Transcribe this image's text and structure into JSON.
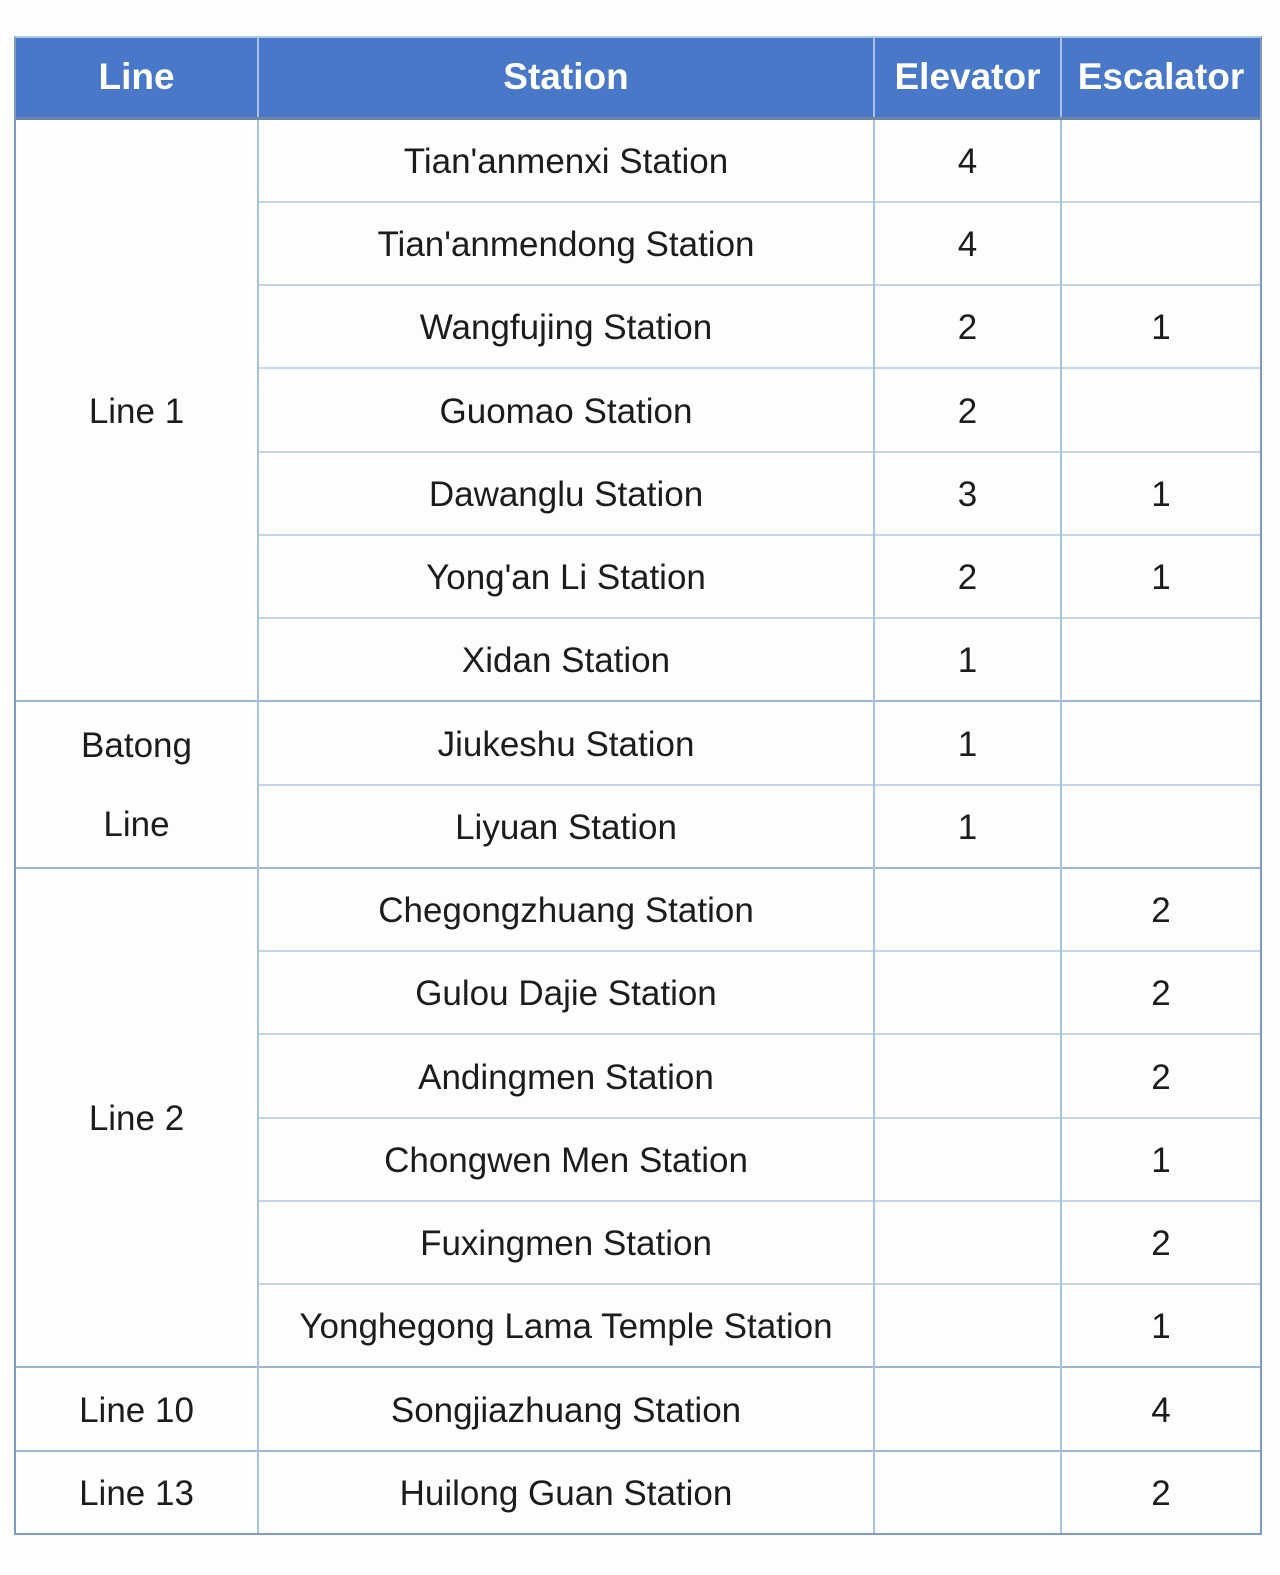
{
  "page": {
    "background_color": "#fdfdfd"
  },
  "style": {
    "header_bg": "#4a78c9",
    "header_text_color": "#ffffff",
    "body_text_color": "#1c1c1c",
    "outer_border_color": "#7e9dbe",
    "outer_top_border_color": "#abcbe1",
    "inner_vertical_border_color": "#a8c3dd",
    "inner_horizontal_border_color": "#c7d6e7",
    "group_boundary_border_color": "#9fb7d0",
    "header_divider_color": "#a9bfe4"
  },
  "chart_data": {
    "type": "table",
    "title": "",
    "columns": [
      "Line",
      "Station",
      "Elevator",
      "Escalator"
    ],
    "groups": [
      {
        "line": "Line 1",
        "stations": [
          {
            "name": "Tian'anmenxi Station",
            "elevator": "4",
            "escalator": ""
          },
          {
            "name": "Tian'anmendong Station",
            "elevator": "4",
            "escalator": ""
          },
          {
            "name": "Wangfujing Station",
            "elevator": "2",
            "escalator": "1"
          },
          {
            "name": "Guomao Station",
            "elevator": "2",
            "escalator": ""
          },
          {
            "name": "Dawanglu Station",
            "elevator": "3",
            "escalator": "1"
          },
          {
            "name": "Yong'an Li Station",
            "elevator": "2",
            "escalator": "1"
          },
          {
            "name": "Xidan Station",
            "elevator": "1",
            "escalator": ""
          }
        ]
      },
      {
        "line": "Batong Line",
        "stations": [
          {
            "name": "Jiukeshu Station",
            "elevator": "1",
            "escalator": ""
          },
          {
            "name": "Liyuan Station",
            "elevator": "1",
            "escalator": ""
          }
        ]
      },
      {
        "line": "Line 2",
        "stations": [
          {
            "name": "Chegongzhuang Station",
            "elevator": "",
            "escalator": "2"
          },
          {
            "name": "Gulou Dajie Station",
            "elevator": "",
            "escalator": "2"
          },
          {
            "name": "Andingmen Station",
            "elevator": "",
            "escalator": "2"
          },
          {
            "name": "Chongwen Men Station",
            "elevator": "",
            "escalator": "1"
          },
          {
            "name": "Fuxingmen Station",
            "elevator": "",
            "escalator": "2"
          },
          {
            "name": "Yonghegong Lama Temple Station",
            "elevator": "",
            "escalator": "1"
          }
        ]
      },
      {
        "line": "Line 10",
        "stations": [
          {
            "name": "Songjiazhuang Station",
            "elevator": "",
            "escalator": "4"
          }
        ]
      },
      {
        "line": "Line 13",
        "stations": [
          {
            "name": "Huilong Guan Station",
            "elevator": "",
            "escalator": "2"
          }
        ]
      }
    ]
  }
}
